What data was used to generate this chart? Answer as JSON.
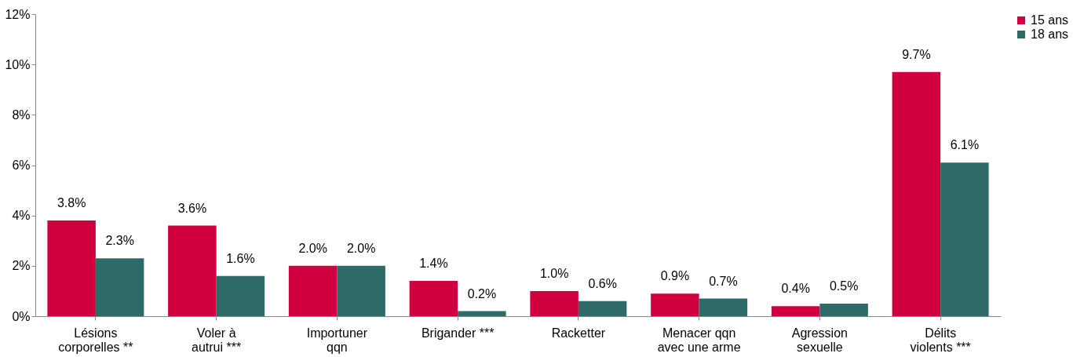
{
  "chart_data": {
    "type": "bar",
    "categories": [
      "Lésions\ncorporelles **",
      "Voler à\nautrui ***",
      "Importuner\nqqn",
      "Brigander ***",
      "Racketter",
      "Menacer qqn\navec une arme",
      "Agression\nsexuelle",
      "Délits\nviolents ***"
    ],
    "series": [
      {
        "name": "15 ans",
        "color": "#d0003f",
        "values": [
          3.8,
          3.6,
          2.0,
          1.4,
          1.0,
          0.9,
          0.4,
          9.7
        ],
        "value_labels": [
          "3.8%",
          "3.6%",
          "2.0%",
          "1.4%",
          "1.0%",
          "0.9%",
          "0.4%",
          "9.7%"
        ]
      },
      {
        "name": "18 ans",
        "color": "#2e6a68",
        "values": [
          2.3,
          1.6,
          2.0,
          0.2,
          0.6,
          0.7,
          0.5,
          6.1
        ],
        "value_labels": [
          "2.3%",
          "1.6%",
          "2.0%",
          "0.2%",
          "0.6%",
          "0.7%",
          "0.5%",
          "6.1%"
        ]
      }
    ],
    "ylim": [
      0,
      12
    ],
    "yticks": [
      {
        "value": 0,
        "label": "0%"
      },
      {
        "value": 2,
        "label": "2%"
      },
      {
        "value": 4,
        "label": "4%"
      },
      {
        "value": 6,
        "label": "6%"
      },
      {
        "value": 8,
        "label": "8%"
      },
      {
        "value": 10,
        "label": "10%"
      },
      {
        "value": 12,
        "label": "12%"
      }
    ],
    "grid": false,
    "legend": "right"
  }
}
